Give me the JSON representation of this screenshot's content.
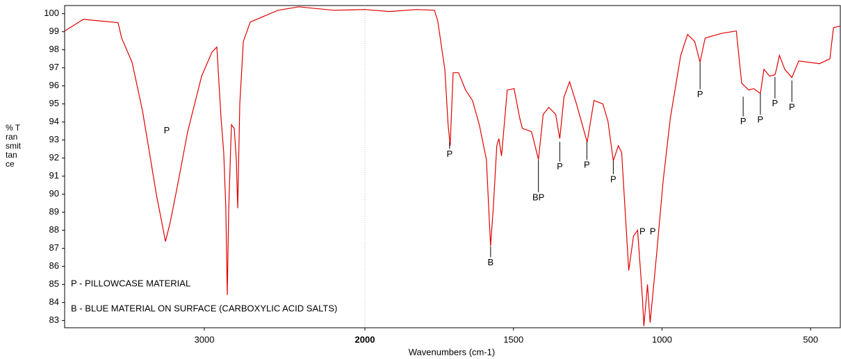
{
  "chart_data": {
    "type": "line",
    "x_label": "Wavenumbers (cm-1)",
    "y_label": "% Transmittance",
    "xlim": [
      3870,
      400
    ],
    "x_break": 2000,
    "ylim": [
      82.6,
      100.45
    ],
    "xticks": [
      3000,
      2000,
      1500,
      1000,
      500
    ],
    "yticks": [
      83,
      84,
      85,
      86,
      87,
      88,
      89,
      90,
      91,
      92,
      93,
      94,
      95,
      96,
      97,
      98,
      99,
      100
    ],
    "x": [
      3870,
      3753,
      3537,
      3515,
      3450,
      3385,
      3342,
      3299,
      3242,
      3212,
      3169,
      3104,
      3017,
      2952,
      2922,
      2896,
      2879,
      2866,
      2857,
      2848,
      2831,
      2814,
      2801,
      2792,
      2779,
      2757,
      2714,
      2541,
      2411,
      2195,
      2000,
      1918,
      1825,
      1766,
      1755,
      1731,
      1720,
      1713,
      1703,
      1685,
      1661,
      1638,
      1615,
      1591,
      1577,
      1568,
      1556,
      1549,
      1540,
      1521,
      1498,
      1479,
      1470,
      1439,
      1416,
      1400,
      1381,
      1358,
      1344,
      1330,
      1311,
      1288,
      1252,
      1229,
      1199,
      1182,
      1164,
      1147,
      1136,
      1112,
      1096,
      1082,
      1066,
      1061,
      1049,
      1040,
      1019,
      996,
      972,
      937,
      914,
      890,
      872,
      855,
      797,
      750,
      732,
      708,
      692,
      669,
      657,
      638,
      620,
      615,
      605,
      587,
      563,
      540,
      470,
      435,
      423,
      400
    ],
    "series": [
      {
        "color": "#e00000",
        "values": [
          99.04,
          99.69,
          99.5,
          98.65,
          97.31,
          94.62,
          92.31,
          90.0,
          87.38,
          88.46,
          90.38,
          93.46,
          96.54,
          97.88,
          98.15,
          94.23,
          92.31,
          89.23,
          84.42,
          89.23,
          93.85,
          93.65,
          91.92,
          89.23,
          95.0,
          98.46,
          99.54,
          100.19,
          100.38,
          100.19,
          100.23,
          100.12,
          100.23,
          100.19,
          99.62,
          96.92,
          93.85,
          92.69,
          96.73,
          96.73,
          95.77,
          95.19,
          93.85,
          91.92,
          87.12,
          89.23,
          92.69,
          93.08,
          92.12,
          95.77,
          95.85,
          94.23,
          93.65,
          93.46,
          91.92,
          94.42,
          94.81,
          94.42,
          93.08,
          95.38,
          96.23,
          95.0,
          92.88,
          95.19,
          95.0,
          94.04,
          91.85,
          92.69,
          92.31,
          85.77,
          87.69,
          88.0,
          84.23,
          82.69,
          85.0,
          82.88,
          86.54,
          90.77,
          94.23,
          97.69,
          98.85,
          98.46,
          97.31,
          98.65,
          98.92,
          99.04,
          96.15,
          95.77,
          95.85,
          95.58,
          96.92,
          96.54,
          96.62,
          96.92,
          97.69,
          96.92,
          96.46,
          97.38,
          97.23,
          97.5,
          99.23,
          99.31
        ]
      }
    ],
    "annotations": [
      {
        "text": "P",
        "x": 3234,
        "y": 93.5
      },
      {
        "text": "P",
        "x": 1715,
        "y": 92.2,
        "tip": 92.9
      },
      {
        "text": "B",
        "x": 1577,
        "y": 86.2,
        "tip": 87.1
      },
      {
        "text": "BP",
        "x": 1416,
        "y": 89.8,
        "tip": 91.9
      },
      {
        "text": "P",
        "x": 1344,
        "y": 91.5,
        "tip": 92.9
      },
      {
        "text": "P",
        "x": 1253,
        "y": 91.6,
        "tip": 92.9
      },
      {
        "text": "P",
        "x": 1164,
        "y": 90.8,
        "tip": 91.85
      },
      {
        "text": "P",
        "x": 1066,
        "y": 87.9
      },
      {
        "text": "P",
        "x": 1031,
        "y": 87.9
      },
      {
        "text": "P",
        "x": 872,
        "y": 95.5,
        "tip": 97.3
      },
      {
        "text": "P",
        "x": 727,
        "y": 94.0,
        "tip": 95.4
      },
      {
        "text": "P",
        "x": 669,
        "y": 94.1,
        "tip": 95.6
      },
      {
        "text": "P",
        "x": 620,
        "y": 95.0,
        "tip": 96.5
      },
      {
        "text": "P",
        "x": 563,
        "y": 94.8,
        "tip": 96.3
      }
    ],
    "notes": [
      "P - PILLOWCASE MATERIAL",
      "B - BLUE MATERIAL ON SURFACE (CARBOXYLIC ACID SALTS)"
    ]
  }
}
